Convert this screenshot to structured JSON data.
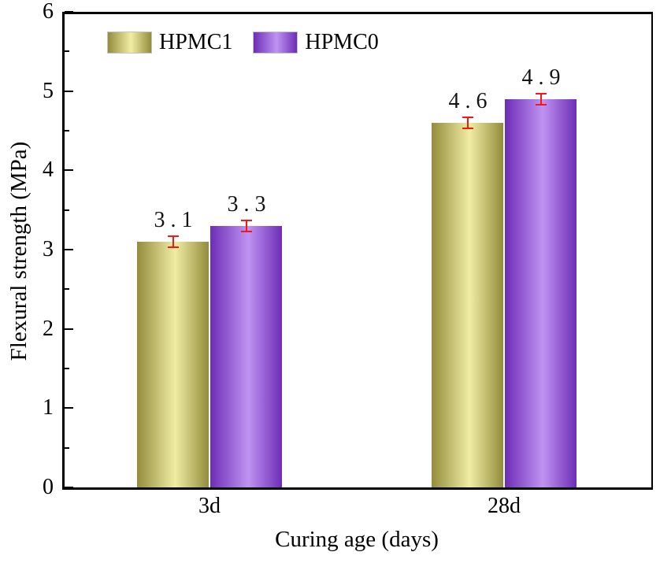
{
  "figure": {
    "background": "#ffffff",
    "frame_color": "#000000"
  },
  "legend": {
    "items": [
      {
        "label": "HPMC1"
      },
      {
        "label": "HPMC0"
      }
    ]
  },
  "chart_data": {
    "type": "bar",
    "title": "",
    "xlabel": "Curing age (days)",
    "ylabel": "Flexural strength (MPa)",
    "categories": [
      "3d",
      "28d"
    ],
    "series": [
      {
        "name": "HPMC1",
        "values": [
          3.1,
          4.6
        ],
        "labels": [
          "3.1",
          "4.6"
        ],
        "errors": [
          0.08,
          0.08
        ],
        "color_edge": "#938c3c",
        "color_center": "#f0eda4"
      },
      {
        "name": "HPMC0",
        "values": [
          3.3,
          4.9
        ],
        "labels": [
          "3.3",
          "4.9"
        ],
        "errors": [
          0.08,
          0.08
        ],
        "color_edge": "#6d2db6",
        "color_center": "#bf93f2"
      }
    ],
    "error_bar_color": "#f51616",
    "ylim": [
      0,
      6
    ],
    "y_major_step": 1,
    "y_minor_step": 0.5,
    "y_tick_labels": [
      "0",
      "1",
      "2",
      "3",
      "4",
      "5",
      "6"
    ],
    "grid": "off",
    "legend_position": "top-left-inside"
  }
}
